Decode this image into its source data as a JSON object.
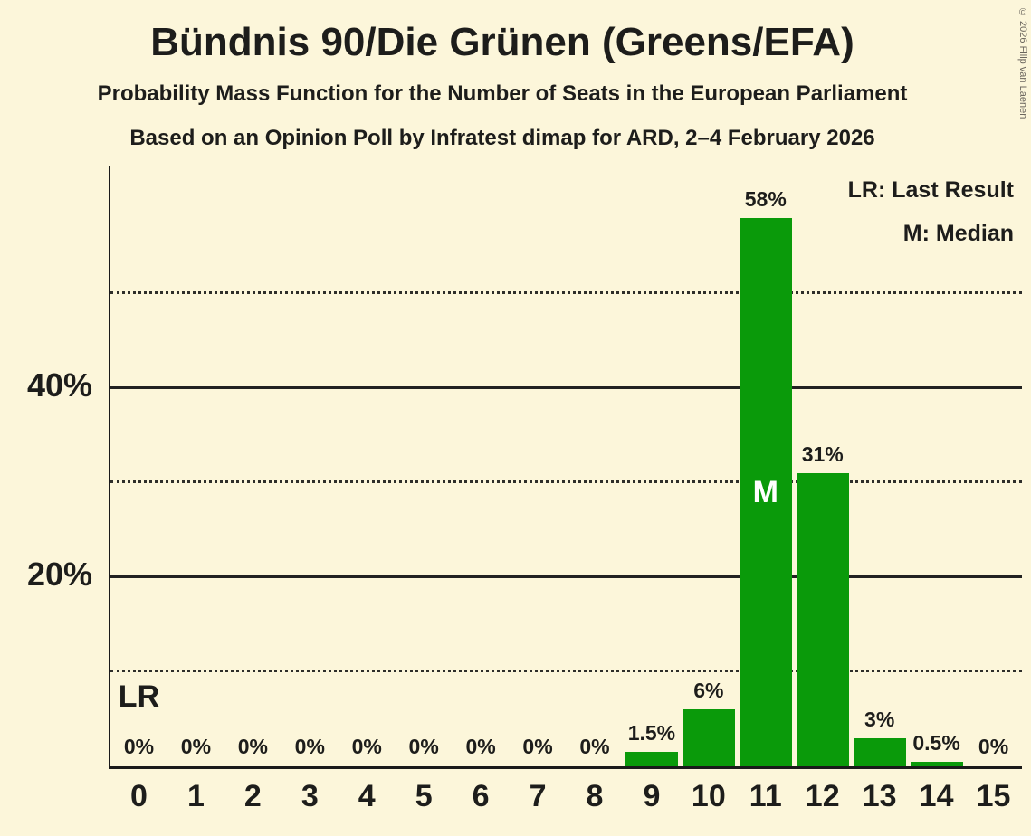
{
  "title": "Bündnis 90/Die Grünen (Greens/EFA)",
  "subtitle1": "Probability Mass Function for the Number of Seats in the European Parliament",
  "subtitle2": "Based on an Opinion Poll by Infratest dimap for ARD, 2–4 February 2026",
  "copyright": "© 2026 Filip van Laenen",
  "legend": {
    "lr": "LR: Last Result",
    "m": "M: Median"
  },
  "chart_data": {
    "type": "bar",
    "title": "Bündnis 90/Die Grünen (Greens/EFA)",
    "xlabel": "",
    "ylabel": "",
    "categories": [
      "0",
      "1",
      "2",
      "3",
      "4",
      "5",
      "6",
      "7",
      "8",
      "9",
      "10",
      "11",
      "12",
      "13",
      "14",
      "15"
    ],
    "values": [
      0,
      0,
      0,
      0,
      0,
      0,
      0,
      0,
      0,
      1.5,
      6,
      58,
      31,
      3,
      0.5,
      0
    ],
    "labels": [
      "0%",
      "0%",
      "0%",
      "0%",
      "0%",
      "0%",
      "0%",
      "0%",
      "0%",
      "1.5%",
      "6%",
      "58%",
      "31%",
      "3%",
      "0.5%",
      "0%"
    ],
    "median_seat": 11,
    "median_marker": "M",
    "last_result_seat": 0,
    "last_result_marker": "LR",
    "ylim": [
      0,
      63.5
    ],
    "yticks": [
      {
        "value": 20,
        "label": "20%"
      },
      {
        "value": 40,
        "label": "40%"
      }
    ],
    "gridlines": [
      {
        "value": 10,
        "style": "dotted"
      },
      {
        "value": 20,
        "style": "solid"
      },
      {
        "value": 30,
        "style": "dotted"
      },
      {
        "value": 40,
        "style": "solid"
      },
      {
        "value": 50,
        "style": "dotted"
      }
    ],
    "legend_position": "top-right",
    "grid": true,
    "bar_color": "#0a9a0a",
    "background_color": "#fcf6da",
    "text_color": "#1d1d1b"
  }
}
